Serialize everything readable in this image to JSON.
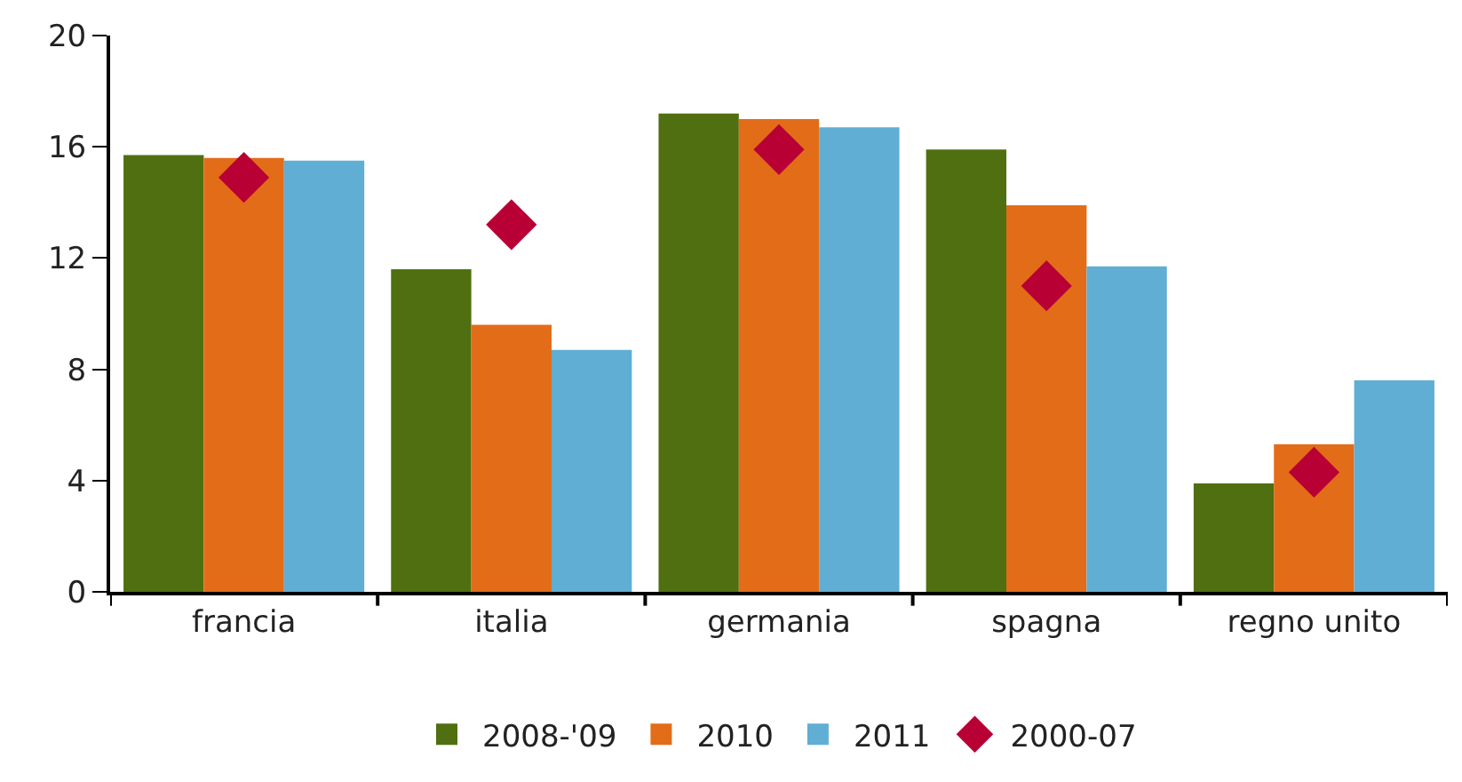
{
  "chart_data": {
    "type": "bar",
    "categories": [
      "francia",
      "italia",
      "germania",
      "spagna",
      "regno unito"
    ],
    "series": [
      {
        "name": "2008-'09",
        "color": "#4f6f10",
        "values": [
          15.7,
          11.6,
          17.2,
          15.9,
          3.9
        ]
      },
      {
        "name": "2010",
        "color": "#e36c19",
        "values": [
          15.6,
          9.6,
          17.0,
          13.9,
          5.3
        ]
      },
      {
        "name": "2011",
        "color": "#60aed4",
        "values": [
          15.5,
          8.7,
          16.7,
          11.7,
          7.6
        ]
      },
      {
        "name": "2000-07",
        "type": "scatter",
        "color": "#b80035",
        "values": [
          14.9,
          13.2,
          15.9,
          11.0,
          4.3
        ]
      }
    ],
    "ylim": [
      0,
      20
    ],
    "yticks": [
      0,
      4,
      8,
      12,
      16,
      20
    ],
    "grid": false,
    "legend": "bottom",
    "marker": "diamond"
  }
}
